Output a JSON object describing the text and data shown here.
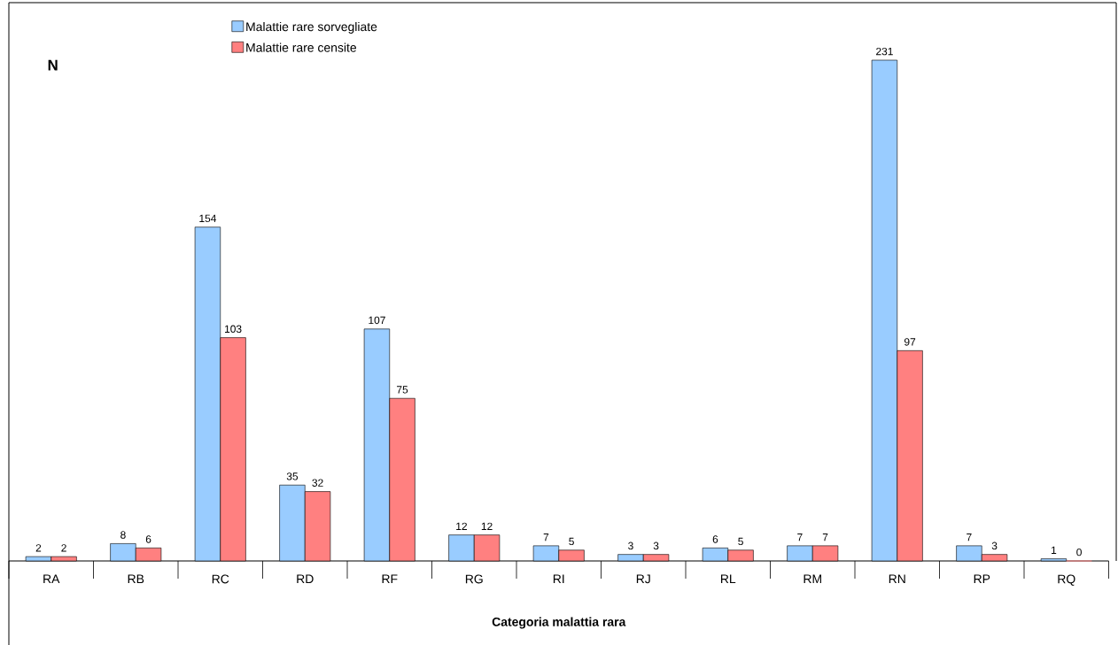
{
  "chart_data": {
    "type": "bar",
    "ylabel": "N",
    "xlabel": "Categoria malattia rara",
    "categories": [
      "RA",
      "RB",
      "RC",
      "RD",
      "RF",
      "RG",
      "RI",
      "RJ",
      "RL",
      "RM",
      "RN",
      "RP",
      "RQ"
    ],
    "series": [
      {
        "name": "Malattie rare sorvegliate",
        "color": "#99ccff",
        "values": [
          2,
          8,
          154,
          35,
          107,
          12,
          7,
          3,
          6,
          7,
          231,
          7,
          1
        ]
      },
      {
        "name": "Malattie rare censite",
        "color": "#ff8080",
        "values": [
          2,
          6,
          103,
          32,
          75,
          12,
          5,
          3,
          5,
          7,
          97,
          3,
          0
        ]
      }
    ],
    "data_labels": true,
    "legend": "top left"
  }
}
